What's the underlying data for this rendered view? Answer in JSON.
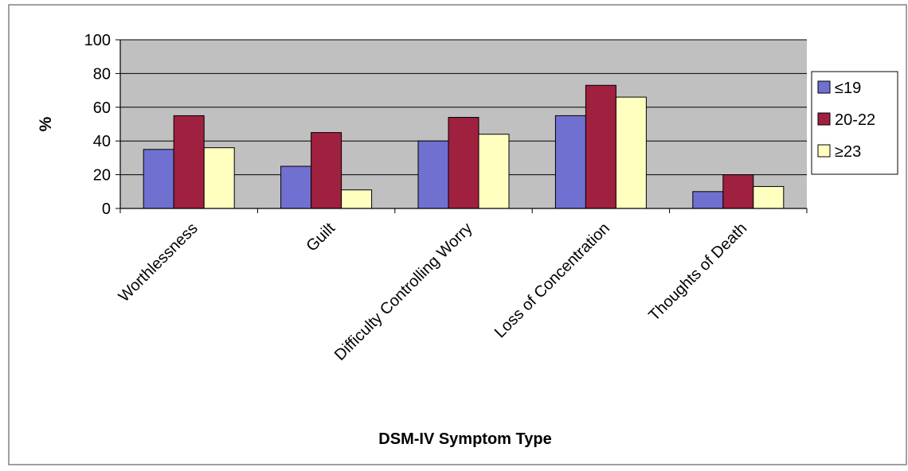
{
  "chart_data": {
    "type": "bar",
    "title": "",
    "xlabel": "DSM-IV Symptom Type",
    "ylabel": "%",
    "ylim": [
      0,
      100
    ],
    "yticks": [
      0,
      20,
      40,
      60,
      80,
      100
    ],
    "grid": true,
    "legend_position": "right",
    "categories": [
      "Worthlessness",
      "Guilt",
      "Difficulty Controlling Worry",
      "Loss of Concentration",
      "Thoughts of Death"
    ],
    "series": [
      {
        "name": "≤19",
        "color": "#7070d0",
        "values": [
          35,
          25,
          40,
          55,
          10
        ]
      },
      {
        "name": "20-22",
        "color": "#a02040",
        "values": [
          55,
          45,
          54,
          73,
          20
        ]
      },
      {
        "name": "≥23",
        "color": "#ffffc0",
        "values": [
          36,
          11,
          44,
          66,
          13
        ]
      }
    ]
  },
  "colors": {
    "plot_background": "#c0c0c0",
    "gridline": "#000000",
    "frame_border": "#808080"
  }
}
